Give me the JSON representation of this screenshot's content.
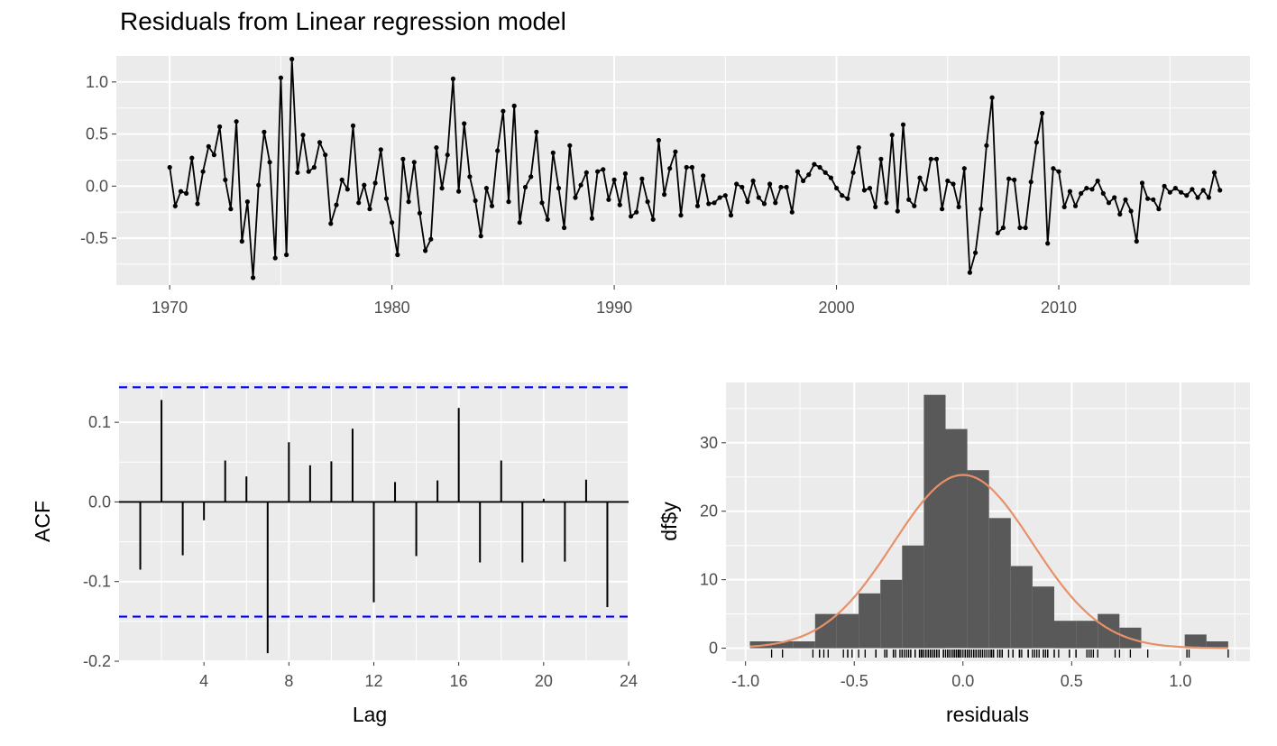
{
  "title": "Residuals from Linear regression model",
  "colors": {
    "panel_bg": "#EBEBEB",
    "grid": "#FFFFFF",
    "line": "#000000",
    "ci_line": "#0000FF",
    "bars": "#595959",
    "density": "#E8906A",
    "tick_text": "#4D4D4D"
  },
  "chart_data": [
    {
      "type": "line",
      "name": "residuals-time-series",
      "x_ticks": [
        "1970",
        "1980",
        "1990",
        "2000",
        "2010"
      ],
      "y_ticks": [
        "1.0",
        "0.5",
        "0.0",
        "-0.5"
      ],
      "xlim": [
        1967.6,
        2018.6
      ],
      "ylim": [
        -0.95,
        1.25
      ],
      "x_start": 1970.0,
      "x_step": 0.25,
      "values": [
        0.18,
        -0.19,
        -0.05,
        -0.07,
        0.27,
        -0.17,
        0.14,
        0.38,
        0.3,
        0.57,
        0.06,
        -0.22,
        0.62,
        -0.53,
        -0.15,
        -0.88,
        0.01,
        0.52,
        0.23,
        -0.69,
        1.04,
        -0.66,
        1.22,
        0.13,
        0.49,
        0.14,
        0.18,
        0.42,
        0.3,
        -0.36,
        -0.18,
        0.06,
        -0.03,
        0.58,
        -0.16,
        0.01,
        -0.22,
        0.03,
        0.35,
        -0.12,
        -0.35,
        -0.66,
        0.26,
        -0.15,
        0.23,
        -0.26,
        -0.62,
        -0.51,
        0.37,
        -0.02,
        0.3,
        1.03,
        -0.05,
        0.6,
        0.09,
        -0.14,
        -0.48,
        -0.02,
        -0.19,
        0.34,
        0.72,
        -0.15,
        0.77,
        -0.35,
        -0.01,
        0.09,
        0.52,
        -0.16,
        -0.32,
        0.32,
        -0.02,
        -0.4,
        0.39,
        -0.11,
        0.01,
        0.13,
        -0.31,
        0.14,
        0.16,
        -0.13,
        0.06,
        -0.18,
        0.12,
        -0.29,
        -0.25,
        0.07,
        -0.15,
        -0.32,
        0.44,
        -0.08,
        0.17,
        0.33,
        -0.28,
        0.18,
        0.18,
        -0.19,
        0.1,
        -0.17,
        -0.16,
        -0.11,
        -0.09,
        -0.28,
        0.02,
        -0.01,
        -0.15,
        0.05,
        -0.11,
        -0.17,
        0.02,
        -0.16,
        -0.01,
        -0.01,
        -0.25,
        0.14,
        0.05,
        0.11,
        0.21,
        0.18,
        0.13,
        0.08,
        -0.02,
        -0.09,
        -0.12,
        0.13,
        0.37,
        -0.04,
        -0.02,
        -0.2,
        0.26,
        -0.16,
        0.49,
        -0.24,
        0.59,
        -0.13,
        -0.19,
        0.08,
        -0.03,
        0.26,
        0.26,
        -0.22,
        0.05,
        0.02,
        -0.2,
        0.17,
        -0.83,
        -0.64,
        -0.22,
        0.39,
        0.85,
        -0.45,
        -0.4,
        0.07,
        0.06,
        -0.4,
        -0.4,
        0.04,
        0.42,
        0.7,
        -0.55,
        0.17,
        0.14,
        -0.2,
        -0.05,
        -0.19,
        -0.07,
        -0.02,
        -0.03,
        0.05,
        -0.07,
        -0.16,
        -0.11,
        -0.27,
        -0.13,
        -0.24,
        -0.53,
        0.03,
        -0.12,
        -0.13,
        -0.22,
        0.0,
        -0.06,
        -0.02,
        -0.06,
        -0.09,
        -0.03,
        -0.11,
        -0.04,
        -0.11,
        0.13,
        -0.04
      ]
    },
    {
      "type": "bar",
      "name": "acf",
      "ylabel": "ACF",
      "xlabel": "Lag",
      "x_ticks": [
        "4",
        "8",
        "12",
        "16",
        "20",
        "24"
      ],
      "y_ticks": [
        "0.1",
        "0.0",
        "-0.1",
        "-0.2"
      ],
      "xlim": [
        0,
        24
      ],
      "ylim": [
        -0.2,
        0.15
      ],
      "ci": 0.144,
      "lags": [
        1,
        2,
        3,
        4,
        5,
        6,
        7,
        8,
        9,
        10,
        11,
        12,
        13,
        14,
        15,
        16,
        17,
        18,
        19,
        20,
        21,
        22,
        23
      ],
      "values": [
        -0.085,
        0.128,
        -0.067,
        -0.023,
        0.052,
        0.032,
        -0.19,
        0.075,
        0.046,
        0.051,
        0.092,
        -0.126,
        0.025,
        -0.068,
        0.027,
        0.118,
        -0.076,
        0.052,
        -0.076,
        0.004,
        -0.075,
        0.028,
        -0.132
      ]
    },
    {
      "type": "histogram",
      "name": "residual-histogram",
      "ylabel": "df$y",
      "xlabel": "residuals",
      "x_ticks": [
        "-1.0",
        "-0.5",
        "0.0",
        "0.5",
        "1.0"
      ],
      "y_ticks": [
        "30",
        "20",
        "10",
        "0"
      ],
      "xlim": [
        -1.09,
        1.32
      ],
      "ylim": [
        -1.9,
        38.8
      ],
      "bin_width": 0.1,
      "bin_starts": [
        -0.98,
        -0.88,
        -0.78,
        -0.68,
        -0.58,
        -0.48,
        -0.38,
        -0.28,
        -0.18,
        -0.08,
        0.02,
        0.12,
        0.22,
        0.32,
        0.42,
        0.52,
        0.62,
        0.72,
        0.82,
        0.92,
        1.02,
        1.12
      ],
      "counts": [
        1,
        1,
        1,
        5,
        5,
        8,
        10,
        15,
        37,
        32,
        26,
        19,
        12,
        9,
        4,
        4,
        5,
        3,
        0,
        0,
        2,
        1
      ],
      "density_peak": 25.3,
      "density_mean": 0.0,
      "density_sd": 0.32
    }
  ]
}
